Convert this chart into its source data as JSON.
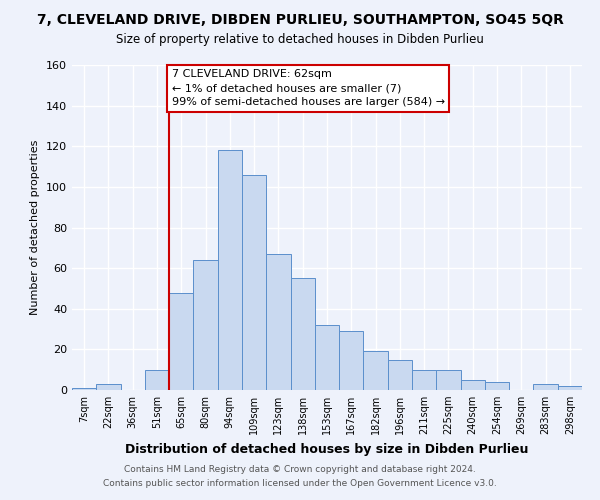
{
  "title": "7, CLEVELAND DRIVE, DIBDEN PURLIEU, SOUTHAMPTON, SO45 5QR",
  "subtitle": "Size of property relative to detached houses in Dibden Purlieu",
  "xlabel": "Distribution of detached houses by size in Dibden Purlieu",
  "ylabel": "Number of detached properties",
  "bar_labels": [
    "7sqm",
    "22sqm",
    "36sqm",
    "51sqm",
    "65sqm",
    "80sqm",
    "94sqm",
    "109sqm",
    "123sqm",
    "138sqm",
    "153sqm",
    "167sqm",
    "182sqm",
    "196sqm",
    "211sqm",
    "225sqm",
    "240sqm",
    "254sqm",
    "269sqm",
    "283sqm",
    "298sqm"
  ],
  "bar_values": [
    1,
    3,
    0,
    10,
    48,
    64,
    118,
    106,
    67,
    55,
    32,
    29,
    19,
    15,
    10,
    10,
    5,
    4,
    0,
    3,
    2
  ],
  "bar_color": "#c9d9f0",
  "bar_edge_color": "#5b8fcc",
  "ylim": [
    0,
    160
  ],
  "yticks": [
    0,
    20,
    40,
    60,
    80,
    100,
    120,
    140,
    160
  ],
  "annotation_title": "7 CLEVELAND DRIVE: 62sqm",
  "annotation_line1": "← 1% of detached houses are smaller (7)",
  "annotation_line2": "99% of semi-detached houses are larger (584) →",
  "vline_x_index": 4,
  "annotation_box_facecolor": "#ffffff",
  "annotation_box_edgecolor": "#cc0000",
  "footer_line1": "Contains HM Land Registry data © Crown copyright and database right 2024.",
  "footer_line2": "Contains public sector information licensed under the Open Government Licence v3.0.",
  "background_color": "#eef2fb",
  "grid_color": "#ffffff",
  "vline_color": "#cc0000"
}
